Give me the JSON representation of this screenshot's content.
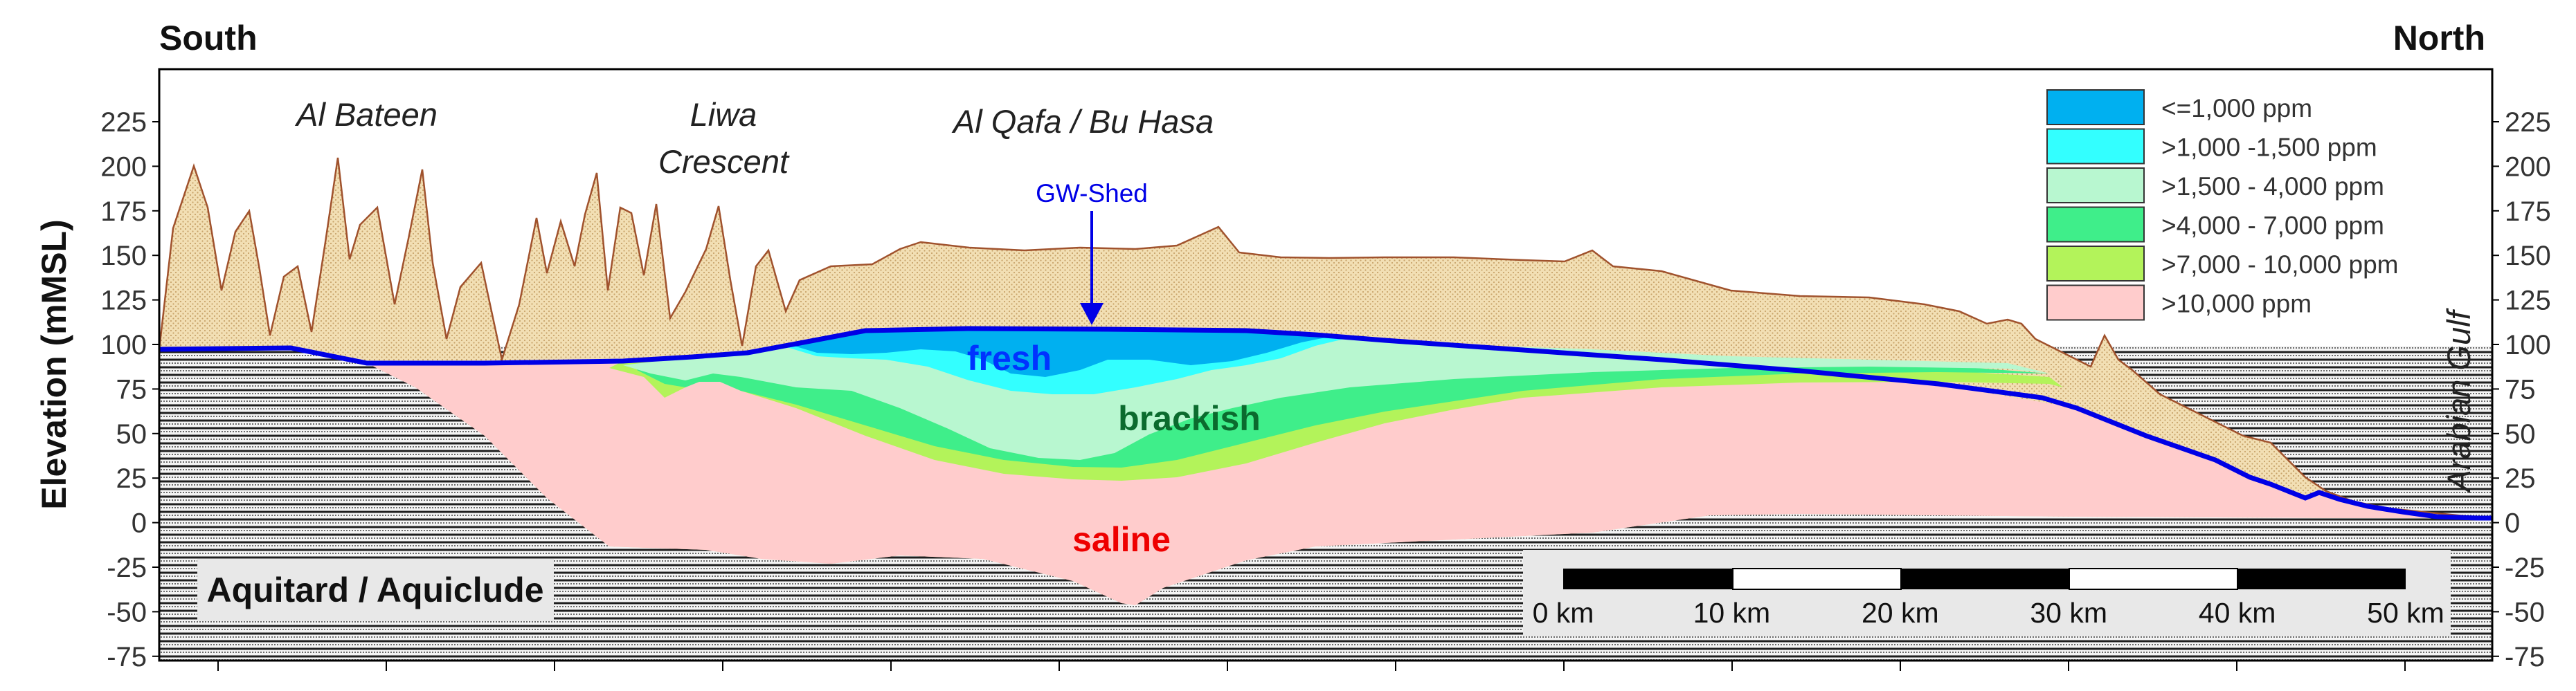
{
  "directions": {
    "left": "South",
    "right": "North"
  },
  "axis": {
    "ylabel": "Elevation (mMSL)",
    "ticks": [
      "225",
      "200",
      "175",
      "150",
      "125",
      "100",
      "75",
      "50",
      "25",
      "0",
      "-25",
      "-50",
      "-75"
    ]
  },
  "places": {
    "al_bateen": "Al Bateen",
    "liwa_line1": "Liwa",
    "liwa_line2": "Crescent",
    "al_qafa": "Al Qafa / Bu Hasa",
    "gulf": "Arabian Gulf"
  },
  "gw_shed": "GW-Shed",
  "zones": {
    "fresh": "fresh",
    "brackish": "brackish",
    "saline": "saline"
  },
  "aquitard": "Aquitard / Aquiclude",
  "legend": [
    {
      "label": "<=1,000 ppm",
      "color": "#00b0f0"
    },
    {
      "label": ">1,000 -1,500 ppm",
      "color": "#33ffff"
    },
    {
      "label": ">1,500 - 4,000 ppm",
      "color": "#b8f7d0"
    },
    {
      "label": ">4,000 - 7,000 ppm",
      "color": "#3fee8a"
    },
    {
      "label": ">7,000 - 10,000 ppm",
      "color": "#b3f35a"
    },
    {
      "label": ">10,000 ppm",
      "color": "#ffcccc"
    }
  ],
  "scale_bar": [
    "0 km",
    "10 km",
    "20 km",
    "30 km",
    "40 km",
    "50 km"
  ],
  "colors": {
    "water_table": "#0000e6",
    "fresh_label": "#0033ff",
    "brackish_label": "#0b6b2e",
    "saline_label": "#ee0000",
    "dune_fill": "#f2dfb4",
    "dune_line": "#a0522d",
    "gulf_label": "#0000e6"
  }
}
